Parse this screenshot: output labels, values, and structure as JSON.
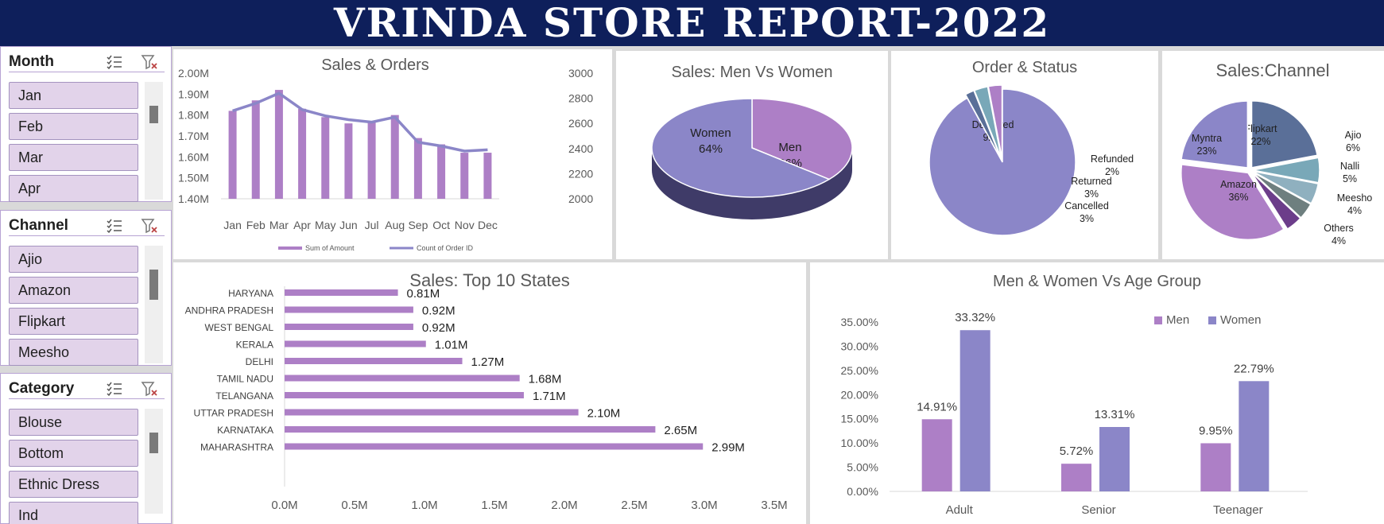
{
  "header": {
    "title": "VRINDA STORE REPORT-2022"
  },
  "slicers": [
    {
      "title": "Month",
      "items": [
        "Jan",
        "Feb",
        "Mar",
        "Apr"
      ],
      "select_icon": "multi-select-icon",
      "clear_icon": "clear-filter-icon"
    },
    {
      "title": "Channel",
      "items": [
        "Ajio",
        "Amazon",
        "Flipkart",
        "Meesho"
      ],
      "select_icon": "multi-select-icon",
      "clear_icon": "clear-filter-icon"
    },
    {
      "title": "Category",
      "items": [
        "Blouse",
        "Bottom",
        "Ethnic Dress",
        "Ind"
      ],
      "select_icon": "multi-select-icon",
      "clear_icon": "clear-filter-icon"
    }
  ],
  "colors": {
    "header_bg": "#0e1f5b",
    "purple": "#ad7fc6",
    "lavender": "#8b86c8",
    "slicer_item": "#e2d3ea",
    "slate": "#5a6f98",
    "teal": "#79a8b8",
    "deep_purple": "#6c3d8a"
  },
  "chart_data": [
    {
      "id": "sales-orders",
      "type": "bar",
      "title": "Sales & Orders",
      "categories": [
        "Jan",
        "Feb",
        "Mar",
        "Apr",
        "May",
        "Jun",
        "Jul",
        "Aug",
        "Sep",
        "Oct",
        "Nov",
        "Dec"
      ],
      "series": [
        {
          "name": "Sum of Amount",
          "type": "bar",
          "axis": "left",
          "values": [
            1.82,
            1.87,
            1.92,
            1.83,
            1.79,
            1.76,
            1.77,
            1.8,
            1.69,
            1.66,
            1.62,
            1.62
          ]
        },
        {
          "name": "Count of Order ID",
          "type": "line",
          "axis": "right",
          "values": [
            2700,
            2760,
            2840,
            2710,
            2660,
            2630,
            2610,
            2650,
            2450,
            2420,
            2380,
            2390
          ]
        }
      ],
      "yleft": {
        "min": 1.4,
        "max": 2.0,
        "ticks": [
          "1.40M",
          "1.50M",
          "1.60M",
          "1.70M",
          "1.80M",
          "1.90M",
          "2.00M"
        ]
      },
      "yright": {
        "min": 2000,
        "max": 3000,
        "ticks": [
          "2000",
          "2200",
          "2400",
          "2600",
          "2800",
          "3000"
        ]
      },
      "legend_position": "bottom"
    },
    {
      "id": "men-women",
      "type": "pie",
      "title": "Sales: Men Vs Women",
      "slices": [
        {
          "label": "Men",
          "value": 36,
          "display": "36%",
          "color": "#ad7fc6"
        },
        {
          "label": "Women",
          "value": 64,
          "display": "64%",
          "color": "#8b86c8"
        }
      ]
    },
    {
      "id": "order-status",
      "type": "pie",
      "title": "Order & Status",
      "slices": [
        {
          "label": "Delivered",
          "value": 92,
          "display": "92%",
          "color": "#8b86c8"
        },
        {
          "label": "Refunded",
          "value": 2,
          "display": "2%",
          "color": "#5a6f98"
        },
        {
          "label": "Returned",
          "value": 3,
          "display": "3%",
          "color": "#79a8b8"
        },
        {
          "label": "Cancelled",
          "value": 3,
          "display": "3%",
          "color": "#ad7fc6"
        }
      ]
    },
    {
      "id": "sales-channel",
      "type": "pie",
      "title": "Sales:Channel",
      "slices": [
        {
          "label": "Flipkart",
          "value": 22,
          "display": "22%",
          "color": "#5a6f98"
        },
        {
          "label": "Ajio",
          "value": 6,
          "display": "6%",
          "color": "#79a8b8"
        },
        {
          "label": "Nalli",
          "value": 5,
          "display": "5%",
          "color": "#8fb0bf"
        },
        {
          "label": "Meesho",
          "value": 4,
          "display": "4%",
          "color": "#6e7f7f"
        },
        {
          "label": "Others",
          "value": 4,
          "display": "4%",
          "color": "#6c3d8a"
        },
        {
          "label": "Amazon",
          "value": 36,
          "display": "36%",
          "color": "#ad7fc6"
        },
        {
          "label": "Myntra",
          "value": 23,
          "display": "23%",
          "color": "#8b86c8"
        }
      ]
    },
    {
      "id": "top-states",
      "type": "bar",
      "orientation": "horizontal",
      "title": "Sales: Top 10 States",
      "categories": [
        "HARYANA",
        "ANDHRA PRADESH",
        "WEST BENGAL",
        "KERALA",
        "DELHI",
        "TAMIL NADU",
        "TELANGANA",
        "UTTAR PRADESH",
        "KARNATAKA",
        "MAHARASHTRA"
      ],
      "values": [
        0.81,
        0.92,
        0.92,
        1.01,
        1.27,
        1.68,
        1.71,
        2.1,
        2.65,
        2.99
      ],
      "value_labels": [
        "0.81M",
        "0.92M",
        "0.92M",
        "1.01M",
        "1.27M",
        "1.68M",
        "1.71M",
        "2.10M",
        "2.65M",
        "2.99M"
      ],
      "xlim": [
        0,
        3.5
      ],
      "xticks": [
        "0.0M",
        "0.5M",
        "1.0M",
        "1.5M",
        "2.0M",
        "2.5M",
        "3.0M",
        "3.5M"
      ]
    },
    {
      "id": "age-group",
      "type": "bar",
      "title": "Men & Women Vs Age Group",
      "categories": [
        "Adult",
        "Senior",
        "Teenager"
      ],
      "series": [
        {
          "name": "Men",
          "values": [
            14.91,
            5.72,
            9.95
          ],
          "labels": [
            "14.91%",
            "5.72%",
            "9.95%"
          ],
          "color": "#ad7fc6"
        },
        {
          "name": "Women",
          "values": [
            33.32,
            13.31,
            22.79
          ],
          "labels": [
            "33.32%",
            "13.31%",
            "22.79%"
          ],
          "color": "#8b86c8"
        }
      ],
      "ylim": [
        0,
        35
      ],
      "yticks": [
        "0.00%",
        "5.00%",
        "10.00%",
        "15.00%",
        "20.00%",
        "25.00%",
        "30.00%",
        "35.00%"
      ],
      "legend_position": "top-right"
    }
  ]
}
